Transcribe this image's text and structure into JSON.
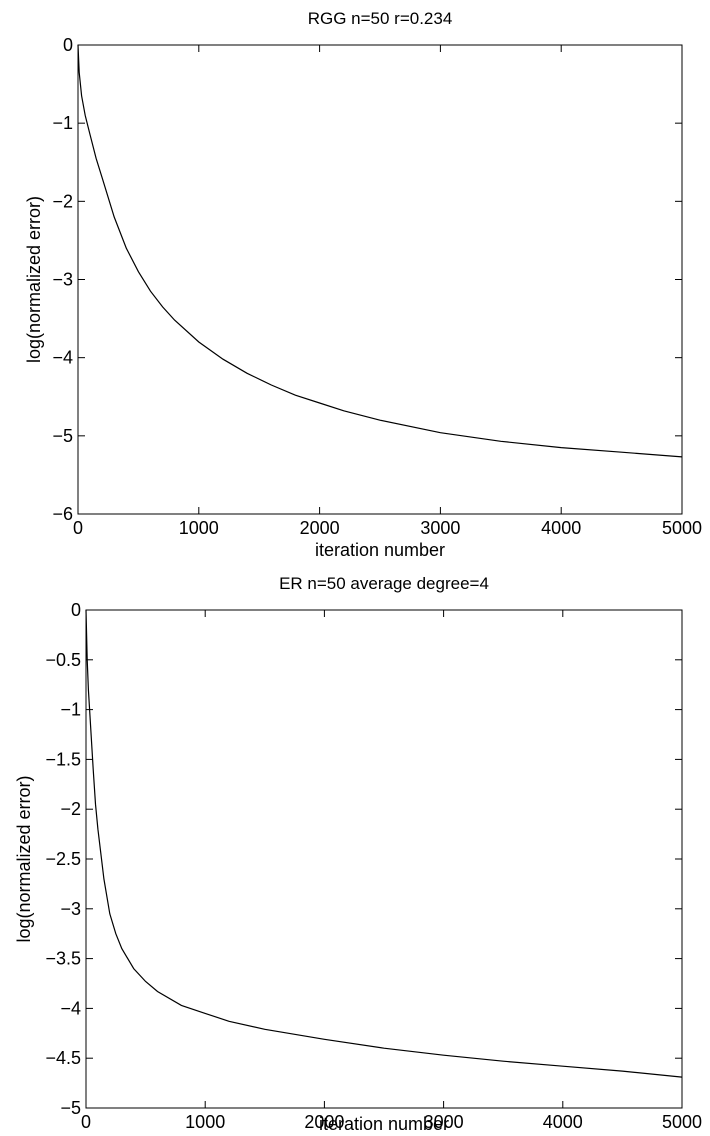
{
  "chart_data": [
    {
      "type": "line",
      "title": "RGG n=50 r=0.234",
      "xlabel": "iteration number",
      "ylabel": "log(normalized error)",
      "xlim": [
        0,
        5000
      ],
      "ylim": [
        -6,
        0
      ],
      "xticks": [
        0,
        1000,
        2000,
        3000,
        4000,
        5000
      ],
      "xtick_labels": [
        "0",
        "1000",
        "2000",
        "3000",
        "4000",
        "5000"
      ],
      "yticks": [
        -6,
        -5,
        -4,
        -3,
        -2,
        -1,
        0
      ],
      "ytick_labels": [
        "−6",
        "−5",
        "−4",
        "−3",
        "−2",
        "−1",
        "0"
      ],
      "grid": false,
      "series": [
        {
          "x": [
            0,
            10,
            30,
            60,
            100,
            150,
            200,
            300,
            400,
            500,
            600,
            700,
            800,
            1000,
            1200,
            1400,
            1600,
            1800,
            2000,
            2200,
            2500,
            3000,
            3500,
            4000,
            4500,
            5000
          ],
          "y": [
            0,
            -0.35,
            -0.65,
            -0.9,
            -1.15,
            -1.45,
            -1.7,
            -2.2,
            -2.6,
            -2.9,
            -3.15,
            -3.35,
            -3.52,
            -3.8,
            -4.02,
            -4.2,
            -4.35,
            -4.48,
            -4.58,
            -4.68,
            -4.8,
            -4.96,
            -5.07,
            -5.15,
            -5.21,
            -5.27
          ]
        }
      ]
    },
    {
      "type": "line",
      "title": "ER n=50 average degree=4",
      "xlabel": "iteration number",
      "ylabel": "log(normalized error)",
      "xlim": [
        0,
        5000
      ],
      "ylim": [
        -5,
        0
      ],
      "xticks": [
        0,
        1000,
        2000,
        3000,
        4000,
        5000
      ],
      "xtick_labels": [
        "0",
        "1000",
        "2000",
        "3000",
        "4000",
        "5000"
      ],
      "yticks": [
        -5,
        -4.5,
        -4,
        -3.5,
        -3,
        -2.5,
        -2,
        -1.5,
        -1,
        -0.5,
        0
      ],
      "ytick_labels": [
        "−5",
        "−4.5",
        "−4",
        "−3.5",
        "−3",
        "−2.5",
        "−2",
        "−1.5",
        "−1",
        "−0.5",
        "0"
      ],
      "grid": false,
      "series": [
        {
          "x": [
            0,
            10,
            20,
            40,
            60,
            80,
            100,
            150,
            200,
            250,
            300,
            400,
            500,
            600,
            800,
            1000,
            1200,
            1500,
            2000,
            2500,
            3000,
            3500,
            4000,
            4500,
            5000
          ],
          "y": [
            0,
            -0.5,
            -0.8,
            -1.2,
            -1.6,
            -1.95,
            -2.2,
            -2.7,
            -3.05,
            -3.25,
            -3.4,
            -3.6,
            -3.73,
            -3.83,
            -3.97,
            -4.05,
            -4.13,
            -4.21,
            -4.31,
            -4.4,
            -4.47,
            -4.53,
            -4.58,
            -4.63,
            -4.69
          ]
        }
      ]
    }
  ]
}
